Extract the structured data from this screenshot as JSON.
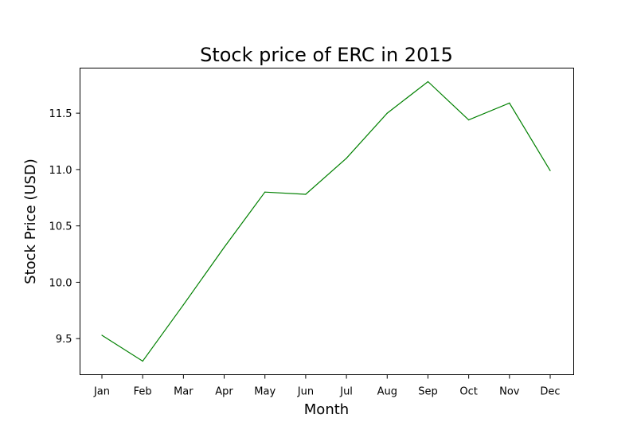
{
  "chart_data": {
    "type": "line",
    "title": "Stock price of ERC in 2015",
    "xlabel": "Month",
    "ylabel": "Stock Price (USD)",
    "categories": [
      "Jan",
      "Feb",
      "Mar",
      "Apr",
      "May",
      "Jun",
      "Jul",
      "Aug",
      "Sep",
      "Oct",
      "Nov",
      "Dec"
    ],
    "series": [
      {
        "values": [
          9.53,
          9.3,
          9.8,
          10.31,
          10.8,
          10.78,
          11.1,
          11.5,
          11.78,
          11.44,
          11.59,
          10.99
        ],
        "color": "#008000"
      }
    ],
    "yticks": [
      9.5,
      10.0,
      10.5,
      11.0,
      11.5
    ],
    "ytick_labels": [
      "9.5",
      "10.0",
      "10.5",
      "11.0",
      "11.5"
    ],
    "ylim": [
      9.18,
      11.9
    ],
    "grid": false,
    "legend": "none"
  }
}
